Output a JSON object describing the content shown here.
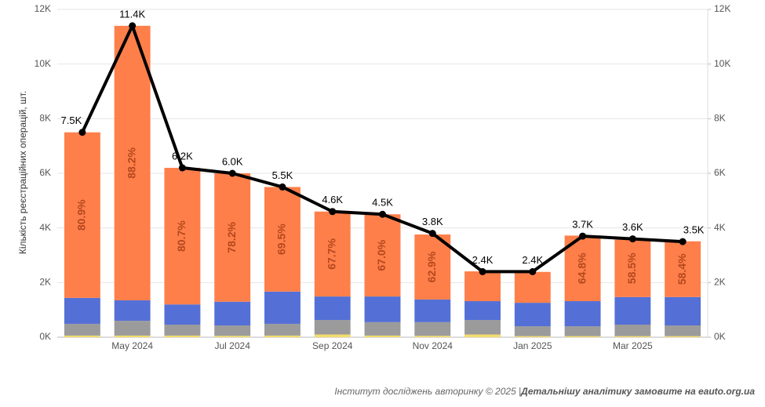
{
  "chart_data": {
    "type": "stacked-bar-line",
    "y_label": "Кількість реєстраційних операцій, шт.",
    "footer": {
      "source": "Інститут досліджень авторинку © 2025 | ",
      "cta": "Детальнішу аналітику замовите на eauto.org.ua"
    },
    "categories": [
      null,
      "May 2024",
      null,
      "Jul 2024",
      null,
      "Sep 2024",
      null,
      "Nov 2024",
      null,
      "Jan 2025",
      null,
      "Mar 2025",
      null
    ],
    "series": [
      {
        "color": "#f2dc6b",
        "values": [
          60,
          60,
          60,
          50,
          60,
          100,
          60,
          50,
          100,
          40,
          40,
          40,
          40
        ]
      },
      {
        "color": "#9b9b9b",
        "values": [
          430,
          540,
          400,
          380,
          430,
          530,
          490,
          500,
          530,
          360,
          360,
          420,
          390
        ]
      },
      {
        "color": "#5470d6",
        "values": [
          950,
          750,
          740,
          870,
          1180,
          860,
          940,
          830,
          690,
          860,
          920,
          1010,
          1040
        ]
      },
      {
        "color": "#ff7f4a",
        "values": [
          6060,
          10050,
          5000,
          4700,
          3830,
          3110,
          3010,
          2380,
          1090,
          1130,
          2400,
          2100,
          2040
        ]
      }
    ],
    "percent_labels": {
      "color": "#b5481e",
      "values": [
        80.9,
        88.2,
        80.7,
        78.2,
        69.5,
        67.7,
        67.0,
        62.9,
        null,
        null,
        64.8,
        58.5,
        58.4
      ],
      "value_labels": [
        "80.9%",
        "88.2%",
        "80.7%",
        "78.2%",
        "69.5%",
        "67.7%",
        "67.0%",
        "62.9%",
        null,
        null,
        "64.8%",
        "58.5%",
        "58.4%"
      ]
    },
    "line": {
      "color": "#000000",
      "values": [
        7500,
        11400,
        6200,
        6000,
        5500,
        4600,
        4500,
        3800,
        2400,
        2400,
        3700,
        3600,
        3500
      ],
      "value_labels": [
        "7.5K",
        "11.4K",
        "6.2K",
        "6.0K",
        "5.5K",
        "4.6K",
        "4.5K",
        "3.8K",
        "2.4K",
        "2.4K",
        "3.7K",
        "3.6K",
        "3.5K"
      ]
    },
    "ylim": [
      0,
      12000
    ],
    "yticks": [
      {
        "value": 0,
        "label": "0K"
      },
      {
        "value": 2000,
        "label": "2K"
      },
      {
        "value": 4000,
        "label": "4K"
      },
      {
        "value": 6000,
        "label": "6K"
      },
      {
        "value": 8000,
        "label": "8K"
      },
      {
        "value": 10000,
        "label": "10K"
      },
      {
        "value": 12000,
        "label": "12K"
      }
    ],
    "y2lim": [
      0,
      12000
    ],
    "y2ticks": [
      {
        "value": 0,
        "label": "0K"
      },
      {
        "value": 2000,
        "label": "2K"
      },
      {
        "value": 4000,
        "label": "4K"
      },
      {
        "value": 6000,
        "label": "6K"
      },
      {
        "value": 8000,
        "label": "8K"
      },
      {
        "value": 10000,
        "label": "10K"
      },
      {
        "value": 12000,
        "label": "12K"
      }
    ],
    "grid": true
  }
}
